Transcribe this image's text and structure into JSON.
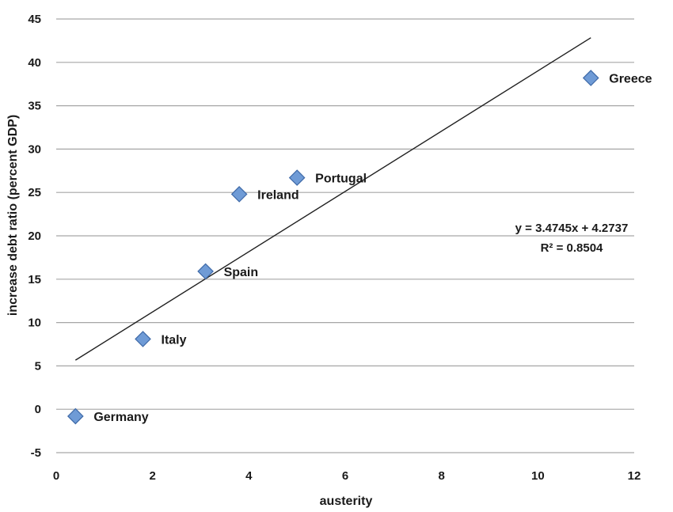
{
  "chart_data": {
    "type": "scatter",
    "xlabel": "austerity",
    "ylabel": "increase debt ratio (percent GDP)",
    "xlim": [
      0,
      12
    ],
    "ylim": [
      -5,
      45
    ],
    "x_ticks": [
      0,
      2,
      4,
      6,
      8,
      10,
      12
    ],
    "y_ticks": [
      -5,
      0,
      5,
      10,
      15,
      20,
      25,
      30,
      35,
      40,
      45
    ],
    "grid": "horizontal",
    "marker": "diamond",
    "marker_color": "#6f9bd6",
    "points": [
      {
        "label": "Germany",
        "x": 0.4,
        "y": -0.8
      },
      {
        "label": "Italy",
        "x": 1.8,
        "y": 8.1
      },
      {
        "label": "Spain",
        "x": 3.1,
        "y": 15.9
      },
      {
        "label": "Ireland",
        "x": 3.8,
        "y": 24.8
      },
      {
        "label": "Portugal",
        "x": 5.0,
        "y": 26.7
      },
      {
        "label": "Greece",
        "x": 11.1,
        "y": 38.2
      }
    ],
    "trendline": {
      "slope": 3.4745,
      "intercept": 4.2737,
      "x_range": [
        0.4,
        11.1
      ],
      "equation": "y = 3.4745x + 4.2737",
      "r_squared": "R² = 0.8504"
    }
  }
}
